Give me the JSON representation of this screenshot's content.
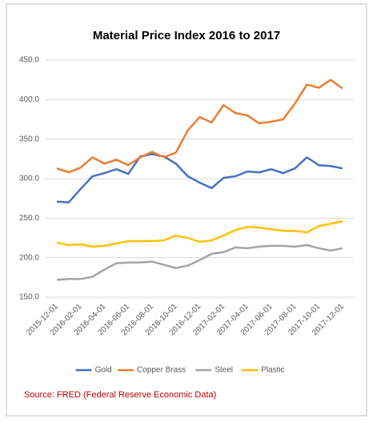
{
  "chart_data": {
    "type": "line",
    "title": "Material Price Index 2016 to 2017",
    "categories": [
      "2015-12-01",
      null,
      "2016-02-01",
      null,
      "2016-04-01",
      null,
      "2016-06-01",
      null,
      "2016-08-01",
      null,
      "2016-10-01",
      null,
      "2016-12-01",
      null,
      "2017-02-01",
      null,
      "2017-04-01",
      null,
      "2017-06-01",
      null,
      "2017-08-01",
      null,
      "2017-10-01",
      null,
      "2017-12-01"
    ],
    "series": [
      {
        "name": "Gold",
        "color": "#4472c4",
        "values": [
          271,
          270,
          287,
          303,
          307,
          312,
          306,
          328,
          331,
          328,
          319,
          303,
          295,
          288,
          301,
          303,
          309,
          308,
          312,
          307,
          313,
          327,
          317,
          316,
          313
        ]
      },
      {
        "name": "Copper Brass",
        "color": "#ed7d31",
        "values": [
          313,
          308,
          314,
          327,
          319,
          324,
          317,
          327,
          334,
          327,
          333,
          361,
          378,
          371,
          393,
          383,
          380,
          370,
          372,
          375,
          395,
          419,
          415,
          425,
          414
        ]
      },
      {
        "name": "Steel",
        "color": "#a5a5a5",
        "values": [
          172,
          173,
          173,
          176,
          185,
          193,
          194,
          194,
          195,
          191,
          187,
          190,
          197,
          205,
          207,
          213,
          212,
          214,
          215,
          215,
          214,
          216,
          212,
          209,
          212
        ]
      },
      {
        "name": "Plastic",
        "color": "#ffc000",
        "values": [
          219,
          216,
          217,
          214,
          215,
          218,
          221,
          221,
          221,
          222,
          228,
          225,
          220,
          222,
          228,
          235,
          239,
          238,
          236,
          234,
          234,
          232,
          240,
          243,
          246
        ]
      }
    ],
    "ylim": [
      150,
      450
    ],
    "yticks": [
      {
        "value": 150,
        "label": "150.0"
      },
      {
        "value": 200,
        "label": "200.0"
      },
      {
        "value": 250,
        "label": "250.0"
      },
      {
        "value": 300,
        "label": "300.0"
      },
      {
        "value": 350,
        "label": "350.0"
      },
      {
        "value": 400,
        "label": "400.0"
      },
      {
        "value": 450,
        "label": "450.0"
      }
    ],
    "grid": true,
    "legend": "bottom",
    "source": "Source: FRED (Federal Reserve Economic Data)"
  }
}
